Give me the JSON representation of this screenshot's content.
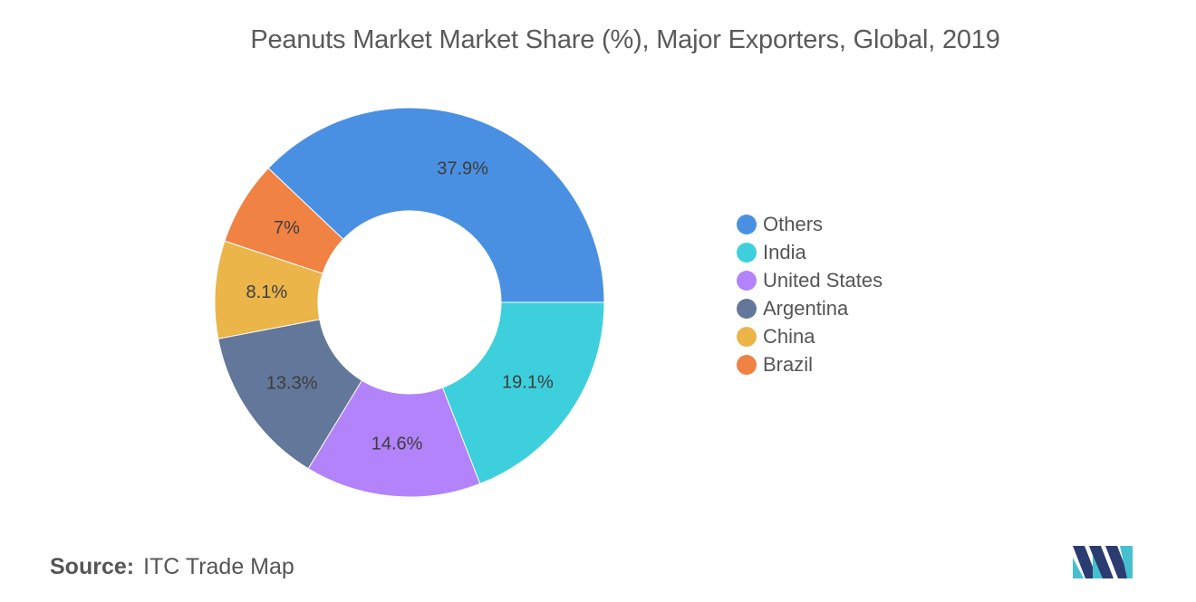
{
  "chart_data": {
    "type": "pie",
    "title": "Peanuts Market Market Share (%), Major Exporters, Global, 2019",
    "donut": true,
    "legend_position": "right",
    "slices": [
      {
        "label": "Others",
        "value": 37.9,
        "display": "37.9%",
        "color": "#4a90e2"
      },
      {
        "label": "Brazil",
        "value": 7.0,
        "display": "7%",
        "color": "#f08244"
      },
      {
        "label": "China",
        "value": 8.1,
        "display": "8.1%",
        "color": "#ebb54a"
      },
      {
        "label": "Argentina",
        "value": 13.3,
        "display": "13.3%",
        "color": "#627799"
      },
      {
        "label": "United States",
        "value": 14.6,
        "display": "14.6%",
        "color": "#b283fa"
      },
      {
        "label": "India",
        "value": 19.1,
        "display": "19.1%",
        "color": "#3ecfdc"
      }
    ]
  },
  "legend": {
    "items": [
      {
        "label": "Others",
        "color": "#4a90e2"
      },
      {
        "label": "India",
        "color": "#3ecfdc"
      },
      {
        "label": "United States",
        "color": "#b283fa"
      },
      {
        "label": "Argentina",
        "color": "#627799"
      },
      {
        "label": "China",
        "color": "#ebb54a"
      },
      {
        "label": "Brazil",
        "color": "#f08244"
      }
    ]
  },
  "source": {
    "label": "Source:",
    "text": "ITC Trade Map"
  },
  "logo": {
    "name": "mordor-intelligence-logo",
    "colors": [
      "#2a3c70",
      "#46bfd0"
    ]
  }
}
